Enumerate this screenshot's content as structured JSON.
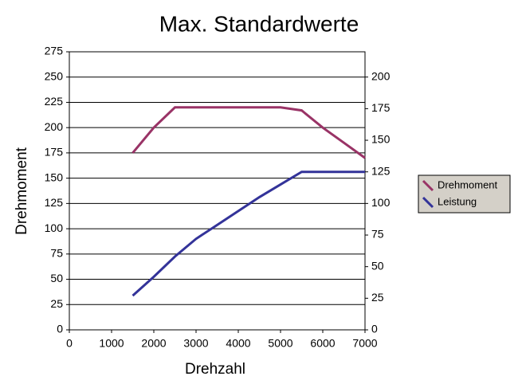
{
  "chart_data": {
    "type": "line",
    "title": "Max. Standardwerte",
    "x_label": "Drehzahl",
    "y_label": "Drehmoment",
    "x": [
      1500,
      2000,
      2500,
      3000,
      3500,
      4000,
      4500,
      5000,
      5500,
      6000,
      6500,
      7000
    ],
    "series": [
      {
        "name": "Drehmoment",
        "color": "#993366",
        "values": [
          175,
          200,
          220,
          220,
          220,
          220,
          220,
          220,
          217,
          200,
          185,
          170
        ]
      },
      {
        "name": "Leistung",
        "color": "#333399",
        "axis": "y2",
        "values": [
          27,
          42,
          58,
          72,
          83,
          94,
          105,
          115,
          125,
          125,
          125,
          125
        ]
      }
    ],
    "xlim": [
      0,
      7000
    ],
    "xticks": [
      0,
      1000,
      2000,
      3000,
      4000,
      5000,
      6000,
      7000
    ],
    "ylim": [
      0,
      275
    ],
    "yticks": [
      0,
      25,
      50,
      75,
      100,
      125,
      150,
      175,
      200,
      225,
      250,
      275
    ],
    "y2lim": [
      0,
      220
    ],
    "y2ticks": [
      0,
      25,
      50,
      75,
      100,
      125,
      150,
      175,
      200
    ],
    "grid": true,
    "legend": "right"
  }
}
